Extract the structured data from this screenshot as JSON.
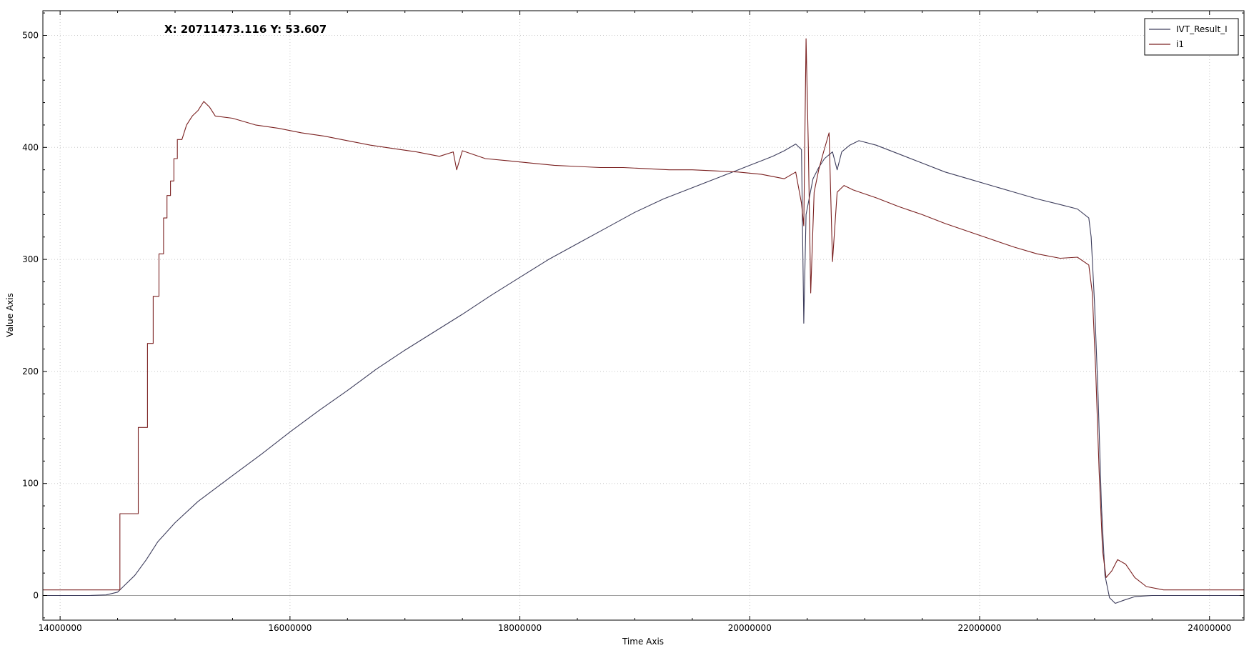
{
  "cursor_readout": "X: 20711473.116 Y: 53.607",
  "chart_data": {
    "type": "line",
    "xlabel": "Time Axis",
    "ylabel": "Value Axis",
    "xlim": [
      13850000,
      24300000
    ],
    "ylim": [
      -22,
      522
    ],
    "x_ticks": [
      14000000,
      16000000,
      18000000,
      20000000,
      22000000,
      24000000
    ],
    "x_tick_labels": [
      "14000000",
      "16000000",
      "18000000",
      "20000000",
      "22000000",
      "24000000"
    ],
    "y_ticks": [
      0,
      100,
      200,
      300,
      400,
      500
    ],
    "y_tick_labels": [
      "0",
      "100",
      "200",
      "300",
      "400",
      "500"
    ],
    "grid": true,
    "legend_position": "top-right",
    "series": [
      {
        "name": "IVT_Result_I",
        "color": "#3d3d5c",
        "points": [
          [
            13850000,
            0
          ],
          [
            14250000,
            0
          ],
          [
            14400000,
            0.5
          ],
          [
            14500000,
            3
          ],
          [
            14550000,
            8
          ],
          [
            14650000,
            18
          ],
          [
            14750000,
            32
          ],
          [
            14850000,
            48
          ],
          [
            15000000,
            65
          ],
          [
            15200000,
            84
          ],
          [
            15500000,
            107
          ],
          [
            15750000,
            126
          ],
          [
            16000000,
            146
          ],
          [
            16250000,
            165
          ],
          [
            16500000,
            183
          ],
          [
            16750000,
            202
          ],
          [
            17000000,
            219
          ],
          [
            17250000,
            235
          ],
          [
            17500000,
            251
          ],
          [
            17750000,
            268
          ],
          [
            18000000,
            284
          ],
          [
            18250000,
            300
          ],
          [
            18500000,
            314
          ],
          [
            18750000,
            328
          ],
          [
            19000000,
            342
          ],
          [
            19250000,
            354
          ],
          [
            19500000,
            364
          ],
          [
            19750000,
            374
          ],
          [
            19900000,
            380
          ],
          [
            20000000,
            384
          ],
          [
            20100000,
            388
          ],
          [
            20200000,
            392
          ],
          [
            20300000,
            397
          ],
          [
            20400000,
            403
          ],
          [
            20450000,
            398
          ],
          [
            20470000,
            243
          ],
          [
            20490000,
            340
          ],
          [
            20550000,
            372
          ],
          [
            20600000,
            382
          ],
          [
            20650000,
            390
          ],
          [
            20720000,
            396
          ],
          [
            20760000,
            380
          ],
          [
            20800000,
            396
          ],
          [
            20870000,
            402
          ],
          [
            20950000,
            406
          ],
          [
            21100000,
            402
          ],
          [
            21300000,
            394
          ],
          [
            21500000,
            386
          ],
          [
            21700000,
            378
          ],
          [
            21900000,
            372
          ],
          [
            22100000,
            366
          ],
          [
            22300000,
            360
          ],
          [
            22500000,
            354
          ],
          [
            22700000,
            349
          ],
          [
            22850000,
            345
          ],
          [
            22950000,
            337
          ],
          [
            22970000,
            320
          ],
          [
            23000000,
            260
          ],
          [
            23030000,
            180
          ],
          [
            23060000,
            80
          ],
          [
            23090000,
            18
          ],
          [
            23130000,
            -2
          ],
          [
            23180000,
            -7
          ],
          [
            23260000,
            -4
          ],
          [
            23350000,
            -1
          ],
          [
            23500000,
            0
          ],
          [
            24300000,
            0
          ]
        ]
      },
      {
        "name": "i1",
        "color": "#7a2020",
        "points": [
          [
            13850000,
            5
          ],
          [
            14520000,
            5
          ],
          [
            14520000,
            73
          ],
          [
            14680000,
            73
          ],
          [
            14680000,
            150
          ],
          [
            14760000,
            150
          ],
          [
            14760000,
            225
          ],
          [
            14810000,
            225
          ],
          [
            14810000,
            267
          ],
          [
            14860000,
            267
          ],
          [
            14860000,
            305
          ],
          [
            14900000,
            305
          ],
          [
            14900000,
            337
          ],
          [
            14930000,
            337
          ],
          [
            14930000,
            357
          ],
          [
            14960000,
            357
          ],
          [
            14960000,
            370
          ],
          [
            14990000,
            370
          ],
          [
            14990000,
            390
          ],
          [
            15020000,
            390
          ],
          [
            15020000,
            407
          ],
          [
            15060000,
            407
          ],
          [
            15100000,
            420
          ],
          [
            15150000,
            428
          ],
          [
            15200000,
            433
          ],
          [
            15250000,
            441
          ],
          [
            15300000,
            436
          ],
          [
            15350000,
            428
          ],
          [
            15500000,
            426
          ],
          [
            15700000,
            420
          ],
          [
            15900000,
            417
          ],
          [
            16100000,
            413
          ],
          [
            16300000,
            410
          ],
          [
            16500000,
            406
          ],
          [
            16700000,
            402
          ],
          [
            16900000,
            399
          ],
          [
            17100000,
            396
          ],
          [
            17300000,
            392
          ],
          [
            17420000,
            396
          ],
          [
            17450000,
            380
          ],
          [
            17500000,
            397
          ],
          [
            17700000,
            390
          ],
          [
            17900000,
            388
          ],
          [
            18100000,
            386
          ],
          [
            18300000,
            384
          ],
          [
            18500000,
            383
          ],
          [
            18700000,
            382
          ],
          [
            18900000,
            382
          ],
          [
            19100000,
            381
          ],
          [
            19300000,
            380
          ],
          [
            19500000,
            380
          ],
          [
            19700000,
            379
          ],
          [
            19900000,
            378
          ],
          [
            20100000,
            376
          ],
          [
            20300000,
            372
          ],
          [
            20400000,
            378
          ],
          [
            20450000,
            350
          ],
          [
            20470000,
            330
          ],
          [
            20490000,
            497
          ],
          [
            20510000,
            400
          ],
          [
            20530000,
            270
          ],
          [
            20560000,
            360
          ],
          [
            20600000,
            380
          ],
          [
            20640000,
            395
          ],
          [
            20690000,
            413
          ],
          [
            20720000,
            298
          ],
          [
            20760000,
            360
          ],
          [
            20820000,
            366
          ],
          [
            20900000,
            362
          ],
          [
            21100000,
            355
          ],
          [
            21300000,
            347
          ],
          [
            21500000,
            340
          ],
          [
            21700000,
            332
          ],
          [
            21900000,
            325
          ],
          [
            22100000,
            318
          ],
          [
            22300000,
            311
          ],
          [
            22500000,
            305
          ],
          [
            22700000,
            301
          ],
          [
            22850000,
            302
          ],
          [
            22950000,
            295
          ],
          [
            22980000,
            270
          ],
          [
            23010000,
            200
          ],
          [
            23040000,
            110
          ],
          [
            23070000,
            40
          ],
          [
            23100000,
            16
          ],
          [
            23150000,
            22
          ],
          [
            23200000,
            32
          ],
          [
            23270000,
            28
          ],
          [
            23350000,
            16
          ],
          [
            23450000,
            8
          ],
          [
            23600000,
            5
          ],
          [
            24300000,
            5
          ]
        ]
      }
    ]
  }
}
